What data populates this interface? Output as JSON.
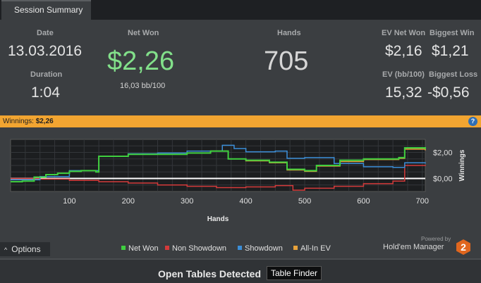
{
  "tab": {
    "label": "Session Summary"
  },
  "stats": {
    "date_label": "Date",
    "date": "13.03.2016",
    "duration_label": "Duration",
    "duration": "1:04",
    "net_won_label": "Net Won",
    "net_won": "$2,26",
    "bb_per_100": "16,03 bb/100",
    "hands_label": "Hands",
    "hands": "705",
    "ev_net_won_label": "EV Net Won",
    "ev_net_won": "$2,16",
    "biggest_win_label": "Biggest Win",
    "biggest_win": "$1,21",
    "ev_bb_label": "EV (bb/100)",
    "ev_bb": "15,32",
    "biggest_loss_label": "Biggest Loss",
    "biggest_loss": "-$0,56"
  },
  "winnings_bar": {
    "label": "Winnings:",
    "value": "$2,26",
    "help": "?"
  },
  "colors": {
    "net_won": "#3fcf3f",
    "non_showdown": "#d43a3a",
    "showdown": "#3b8ed8",
    "all_in_ev": "#e8a23a",
    "accent": "#f2a531"
  },
  "chart_data": {
    "type": "line",
    "xlabel": "Hands",
    "ylabel": "Winnings",
    "xlim": [
      0,
      705
    ],
    "ylim": [
      -1.0,
      3.0
    ],
    "x_ticks": [
      "100",
      "200",
      "300",
      "400",
      "500",
      "600",
      "700"
    ],
    "y_ticks": [
      "$2,00",
      "$0,00"
    ],
    "grid": true,
    "legend_position": "bottom",
    "series": [
      {
        "name": "Net Won",
        "x": [
          0,
          20,
          40,
          60,
          80,
          100,
          120,
          145,
          150,
          200,
          250,
          300,
          340,
          370,
          400,
          440,
          470,
          500,
          520,
          560,
          600,
          660,
          670,
          705
        ],
        "y": [
          -0.25,
          -0.2,
          0.1,
          0.3,
          0.4,
          0.55,
          0.6,
          0.5,
          1.7,
          1.85,
          1.85,
          1.95,
          2.1,
          1.5,
          1.4,
          1.25,
          0.7,
          0.6,
          1.0,
          1.4,
          1.5,
          1.6,
          2.35,
          2.26
        ]
      },
      {
        "name": "Non Showdown",
        "x": [
          0,
          50,
          100,
          150,
          200,
          250,
          300,
          350,
          400,
          450,
          480,
          500,
          550,
          600,
          650,
          670,
          705
        ],
        "y": [
          0.0,
          -0.05,
          -0.15,
          -0.25,
          -0.35,
          -0.5,
          -0.6,
          -0.7,
          -0.65,
          -0.55,
          -0.9,
          -0.75,
          -0.6,
          -0.4,
          -0.2,
          1.0,
          1.05
        ]
      },
      {
        "name": "Showdown",
        "x": [
          0,
          50,
          100,
          150,
          200,
          250,
          300,
          360,
          380,
          400,
          450,
          470,
          500,
          550,
          600,
          650,
          670,
          705
        ],
        "y": [
          -0.1,
          0.15,
          0.6,
          1.7,
          1.9,
          1.95,
          2.1,
          2.55,
          2.3,
          2.05,
          2.1,
          1.55,
          1.6,
          1.15,
          0.9,
          0.85,
          1.2,
          1.15
        ]
      },
      {
        "name": "All-In EV",
        "x": [
          0,
          20,
          40,
          60,
          80,
          100,
          120,
          145,
          150,
          200,
          250,
          300,
          340,
          370,
          400,
          440,
          470,
          500,
          520,
          560,
          600,
          660,
          670,
          705
        ],
        "y": [
          -0.25,
          -0.2,
          0.1,
          0.3,
          0.4,
          0.55,
          0.6,
          0.5,
          1.7,
          1.85,
          1.85,
          1.95,
          2.1,
          1.5,
          1.35,
          1.2,
          0.65,
          0.55,
          0.95,
          1.3,
          1.45,
          1.55,
          2.25,
          2.16
        ]
      }
    ]
  },
  "options": {
    "label": "Options",
    "chevron": "^"
  },
  "branding": {
    "powered_by": "Powered by",
    "name": "Hold'em Manager",
    "badge": "2"
  },
  "bottom": {
    "title": "Open Tables Detected",
    "button": "Table Finder"
  }
}
